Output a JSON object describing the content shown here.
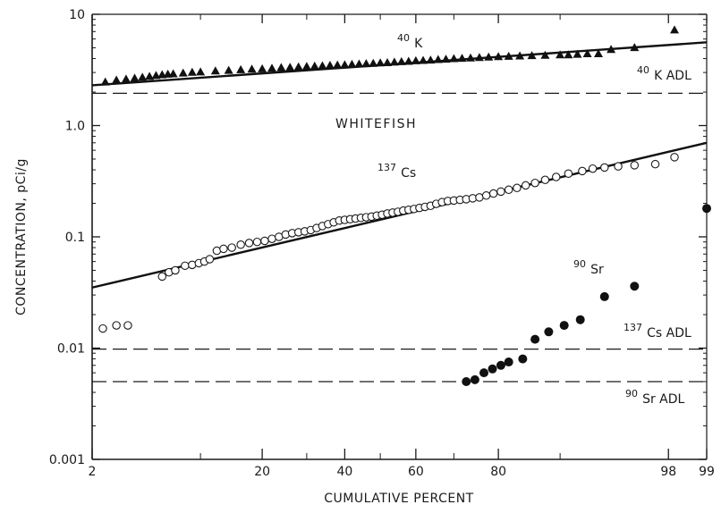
{
  "chart_data": {
    "type": "scatter",
    "title": "",
    "xlabel": "CUMULATIVE PERCENT",
    "ylabel": "CONCENTRATION, pCi/g",
    "x_scale": "probability",
    "y_scale": "log",
    "ylim": [
      0.001,
      10
    ],
    "xlim": [
      2,
      99
    ],
    "grid": false,
    "x_ticks_major": [
      2,
      20,
      40,
      60,
      80,
      98,
      99
    ],
    "x_ticks_minor": [
      10,
      30,
      50,
      70,
      90
    ],
    "y_ticks": [
      {
        "value": 10,
        "label": "10"
      },
      {
        "value": 1,
        "label": "1.0"
      },
      {
        "value": 0.1,
        "label": "0.1"
      },
      {
        "value": 0.01,
        "label": "0.01"
      },
      {
        "value": 0.001,
        "label": "0.001"
      }
    ],
    "annotations": {
      "whitefish": "WHITEFISH",
      "k40": {
        "sup": "40",
        "base": "K"
      },
      "k40_adl": {
        "sup": "40",
        "base": "K ADL"
      },
      "cs137": {
        "sup": "137",
        "base": "Cs"
      },
      "cs137_adl": {
        "sup": "137",
        "base": "Cs ADL"
      },
      "sr90": {
        "sup": "90",
        "base": "Sr"
      },
      "sr90_adl": {
        "sup": "90",
        "base": "Sr ADL"
      }
    },
    "adl_lines": [
      {
        "name": "40K ADL",
        "y": 1.95
      },
      {
        "name": "137Cs ADL",
        "y": 0.0098
      },
      {
        "name": "90Sr ADL",
        "y": 0.005
      }
    ],
    "fit_lines": [
      {
        "name": "40K",
        "p": [
          2,
          99
        ],
        "y": [
          2.3,
          5.6
        ]
      },
      {
        "name": "137Cs",
        "p": [
          2,
          99
        ],
        "y": [
          0.035,
          0.7
        ]
      }
    ],
    "series": [
      {
        "name": "40K",
        "marker": "triangle-filled",
        "points": [
          [
            2.5,
            2.45
          ],
          [
            3,
            2.55
          ],
          [
            3.5,
            2.6
          ],
          [
            4,
            2.65
          ],
          [
            4.5,
            2.7
          ],
          [
            5,
            2.75
          ],
          [
            5.5,
            2.8
          ],
          [
            6,
            2.85
          ],
          [
            6.5,
            2.88
          ],
          [
            7,
            2.9
          ],
          [
            8,
            2.95
          ],
          [
            9,
            3.0
          ],
          [
            10,
            3.02
          ],
          [
            12,
            3.08
          ],
          [
            14,
            3.12
          ],
          [
            16,
            3.16
          ],
          [
            18,
            3.2
          ],
          [
            20,
            3.22
          ],
          [
            22,
            3.26
          ],
          [
            24,
            3.3
          ],
          [
            26,
            3.32
          ],
          [
            28,
            3.35
          ],
          [
            30,
            3.38
          ],
          [
            32,
            3.4
          ],
          [
            34,
            3.43
          ],
          [
            36,
            3.46
          ],
          [
            38,
            3.48
          ],
          [
            40,
            3.5
          ],
          [
            42,
            3.53
          ],
          [
            44,
            3.56
          ],
          [
            46,
            3.58
          ],
          [
            48,
            3.61
          ],
          [
            50,
            3.64
          ],
          [
            52,
            3.66
          ],
          [
            54,
            3.7
          ],
          [
            56,
            3.73
          ],
          [
            58,
            3.76
          ],
          [
            60,
            3.8
          ],
          [
            62,
            3.83
          ],
          [
            64,
            3.86
          ],
          [
            66,
            3.9
          ],
          [
            68,
            3.93
          ],
          [
            70,
            3.97
          ],
          [
            72,
            4.0
          ],
          [
            74,
            4.03
          ],
          [
            76,
            4.07
          ],
          [
            78,
            4.1
          ],
          [
            80,
            4.14
          ],
          [
            82,
            4.17
          ],
          [
            84,
            4.2
          ],
          [
            86,
            4.23
          ],
          [
            88,
            4.26
          ],
          [
            90,
            4.3
          ],
          [
            91,
            4.3
          ],
          [
            92,
            4.35
          ],
          [
            93,
            4.4
          ],
          [
            94,
            4.4
          ],
          [
            95,
            4.8
          ],
          [
            96.5,
            5.0
          ],
          [
            98.2,
            7.2
          ]
        ]
      },
      {
        "name": "137Cs",
        "marker": "circle-open",
        "points": [
          [
            2.4,
            0.015
          ],
          [
            3,
            0.016
          ],
          [
            3.6,
            0.016
          ],
          [
            6.0,
            0.044
          ],
          [
            6.6,
            0.048
          ],
          [
            7.2,
            0.05
          ],
          [
            8.2,
            0.055
          ],
          [
            9.0,
            0.056
          ],
          [
            9.8,
            0.058
          ],
          [
            10.5,
            0.06
          ],
          [
            11.2,
            0.063
          ],
          [
            12.2,
            0.075
          ],
          [
            13.2,
            0.078
          ],
          [
            14.5,
            0.08
          ],
          [
            16.0,
            0.085
          ],
          [
            17.5,
            0.088
          ],
          [
            19.0,
            0.09
          ],
          [
            20.5,
            0.092
          ],
          [
            22.0,
            0.096
          ],
          [
            23.5,
            0.1
          ],
          [
            25.0,
            0.105
          ],
          [
            26.5,
            0.108
          ],
          [
            28.0,
            0.11
          ],
          [
            29.5,
            0.112
          ],
          [
            31.0,
            0.115
          ],
          [
            32.5,
            0.12
          ],
          [
            34.0,
            0.125
          ],
          [
            35.5,
            0.13
          ],
          [
            37.0,
            0.135
          ],
          [
            38.5,
            0.14
          ],
          [
            40.0,
            0.142
          ],
          [
            41.5,
            0.144
          ],
          [
            43.0,
            0.146
          ],
          [
            44.5,
            0.148
          ],
          [
            46.0,
            0.15
          ],
          [
            47.5,
            0.152
          ],
          [
            49.0,
            0.155
          ],
          [
            50.5,
            0.158
          ],
          [
            52.0,
            0.162
          ],
          [
            53.5,
            0.165
          ],
          [
            55.0,
            0.168
          ],
          [
            56.5,
            0.172
          ],
          [
            58.0,
            0.175
          ],
          [
            59.5,
            0.178
          ],
          [
            61.0,
            0.182
          ],
          [
            62.5,
            0.186
          ],
          [
            64.0,
            0.19
          ],
          [
            65.5,
            0.198
          ],
          [
            67.0,
            0.205
          ],
          [
            68.5,
            0.21
          ],
          [
            70.0,
            0.212
          ],
          [
            71.5,
            0.215
          ],
          [
            73.0,
            0.218
          ],
          [
            74.5,
            0.222
          ],
          [
            76.0,
            0.226
          ],
          [
            77.5,
            0.235
          ],
          [
            79.0,
            0.245
          ],
          [
            80.5,
            0.255
          ],
          [
            82.0,
            0.265
          ],
          [
            83.5,
            0.275
          ],
          [
            85.0,
            0.29
          ],
          [
            86.5,
            0.305
          ],
          [
            88.0,
            0.325
          ],
          [
            89.5,
            0.345
          ],
          [
            91.0,
            0.37
          ],
          [
            92.5,
            0.39
          ],
          [
            93.5,
            0.41
          ],
          [
            94.5,
            0.42
          ],
          [
            95.5,
            0.43
          ],
          [
            96.5,
            0.44
          ],
          [
            97.5,
            0.45
          ],
          [
            98.2,
            0.52
          ]
        ]
      },
      {
        "name": "90Sr",
        "marker": "circle-filled",
        "points": [
          [
            73.0,
            0.005
          ],
          [
            75.0,
            0.0052
          ],
          [
            77.0,
            0.006
          ],
          [
            78.8,
            0.0065
          ],
          [
            80.5,
            0.007
          ],
          [
            82.0,
            0.0075
          ],
          [
            84.5,
            0.008
          ],
          [
            86.5,
            0.012
          ],
          [
            88.5,
            0.014
          ],
          [
            90.5,
            0.016
          ],
          [
            92.3,
            0.018
          ],
          [
            94.5,
            0.029
          ],
          [
            96.5,
            0.036
          ],
          [
            99.0,
            0.18
          ]
        ]
      }
    ]
  }
}
